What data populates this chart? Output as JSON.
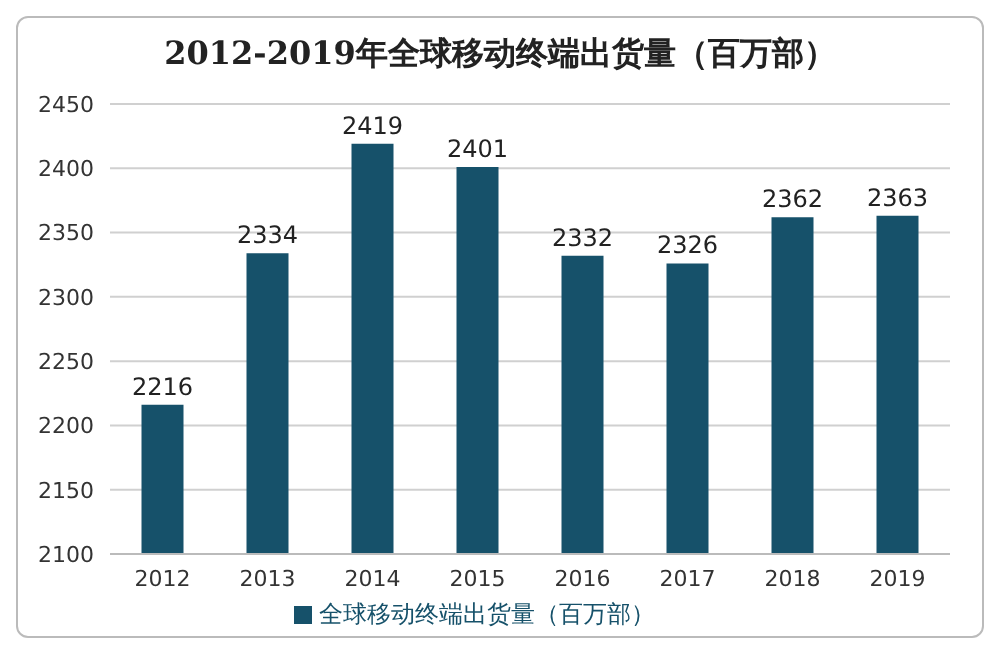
{
  "chart_data": {
    "type": "bar",
    "title": "2012-2019年全球移动终端出货量（百万部）",
    "categories": [
      "2012",
      "2013",
      "2014",
      "2015",
      "2016",
      "2017",
      "2018",
      "2019"
    ],
    "series": [
      {
        "name": "全球移动终端出货量（百万部）",
        "color": "#16516a",
        "values": [
          2216,
          2334,
          2419,
          2401,
          2332,
          2326,
          2362,
          2363
        ]
      }
    ],
    "ylim": [
      2100,
      2450
    ],
    "yticks": [
      2100,
      2150,
      2200,
      2250,
      2300,
      2350,
      2400,
      2450
    ],
    "grid": "y",
    "legend": "bottom",
    "data_labels": true
  }
}
